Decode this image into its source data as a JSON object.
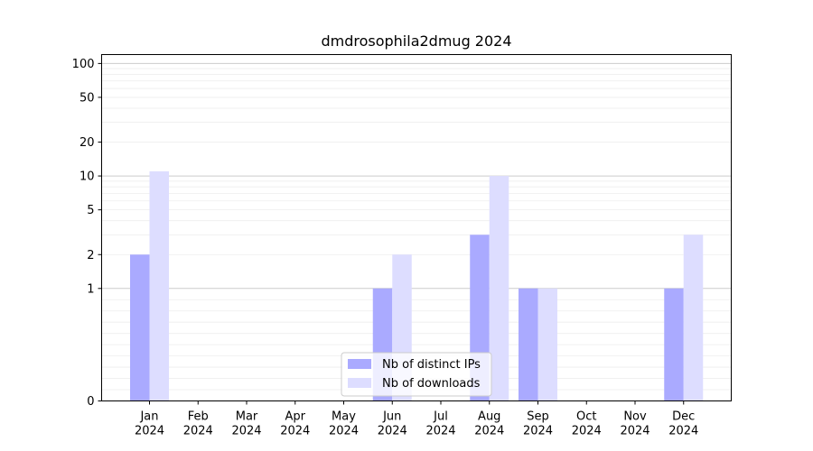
{
  "chart_data": {
    "type": "bar",
    "title": "dmdrosophila2dmug 2024",
    "xlabel": "",
    "ylabel": "",
    "yscale": "symlog",
    "ylim": [
      0,
      120
    ],
    "yticks": [
      0,
      1,
      2,
      5,
      10,
      20,
      50,
      100
    ],
    "yticklabels": [
      "0",
      "1",
      "2",
      "5",
      "10",
      "20",
      "50",
      "100"
    ],
    "categories": [
      "Jan\n2024",
      "Feb\n2024",
      "Mar\n2024",
      "Apr\n2024",
      "May\n2024",
      "Jun\n2024",
      "Jul\n2024",
      "Aug\n2024",
      "Sep\n2024",
      "Oct\n2024",
      "Nov\n2024",
      "Dec\n2024"
    ],
    "series": [
      {
        "name": "Nb of distinct IPs",
        "color": "#aaaaff",
        "values": [
          2,
          0,
          0,
          0,
          0,
          1,
          0,
          3,
          1,
          0,
          0,
          1
        ]
      },
      {
        "name": "Nb of downloads",
        "color": "#ddddff",
        "values": [
          11,
          0,
          0,
          0,
          0,
          2,
          0,
          10,
          1,
          0,
          0,
          3
        ]
      }
    ],
    "legend_position": "lower-center",
    "grid": true
  }
}
